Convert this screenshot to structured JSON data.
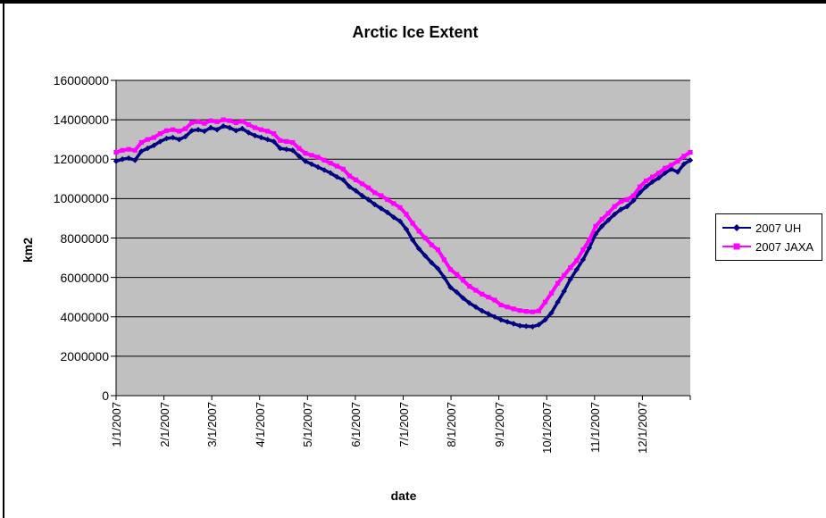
{
  "chart_data": {
    "type": "line",
    "title": "Arctic Ice Extent",
    "xlabel": "date",
    "ylabel": "km2",
    "ylim": [
      0,
      16000000
    ],
    "y_tick_interval": 2000000,
    "y_tick_labels": [
      "16000000",
      "14000000",
      "12000000",
      "10000000",
      "8000000",
      "6000000",
      "4000000",
      "2000000",
      "0"
    ],
    "x_tick_labels": [
      "1/1/2007",
      "2/1/2007",
      "3/1/2007",
      "4/1/2007",
      "5/1/2007",
      "6/1/2007",
      "7/1/2007",
      "8/1/2007",
      "9/1/2007",
      "10/1/2007",
      "11/1/2007",
      "12/1/2007"
    ],
    "x_unit": "day of year 2007 (daily series, sampled every 4 days)",
    "x_day_of_year": [
      1,
      5,
      9,
      13,
      17,
      21,
      25,
      29,
      33,
      37,
      41,
      45,
      49,
      53,
      57,
      61,
      65,
      69,
      73,
      77,
      81,
      85,
      89,
      93,
      97,
      101,
      105,
      109,
      113,
      117,
      121,
      125,
      129,
      133,
      137,
      141,
      145,
      149,
      153,
      157,
      161,
      165,
      169,
      173,
      177,
      181,
      185,
      189,
      193,
      197,
      201,
      205,
      209,
      213,
      217,
      221,
      225,
      229,
      233,
      237,
      241,
      245,
      249,
      253,
      257,
      261,
      265,
      269,
      273,
      277,
      281,
      285,
      289,
      293,
      297,
      301,
      305,
      309,
      313,
      317,
      321,
      325,
      329,
      333,
      337,
      341,
      345,
      349,
      353,
      357,
      361,
      365
    ],
    "series": [
      {
        "name": "2007 UH",
        "color": "#000080",
        "marker": "diamond",
        "values": [
          11900000,
          12000000,
          12050000,
          11950000,
          12400000,
          12550000,
          12700000,
          12900000,
          13050000,
          13100000,
          13000000,
          13150000,
          13450000,
          13500000,
          13420000,
          13600000,
          13500000,
          13680000,
          13600000,
          13450000,
          13550000,
          13350000,
          13200000,
          13100000,
          13000000,
          12900000,
          12550000,
          12500000,
          12450000,
          12150000,
          11900000,
          11750000,
          11600000,
          11450000,
          11300000,
          11100000,
          10950000,
          10600000,
          10400000,
          10150000,
          9950000,
          9700000,
          9500000,
          9300000,
          9050000,
          8850000,
          8450000,
          7900000,
          7450000,
          7100000,
          6750000,
          6450000,
          6000000,
          5500000,
          5250000,
          4950000,
          4700000,
          4500000,
          4300000,
          4150000,
          4000000,
          3850000,
          3750000,
          3650000,
          3550000,
          3520000,
          3500000,
          3600000,
          3850000,
          4200000,
          4750000,
          5300000,
          5900000,
          6400000,
          6900000,
          7500000,
          8200000,
          8600000,
          8900000,
          9200000,
          9450000,
          9600000,
          9900000,
          10300000,
          10600000,
          10850000,
          11050000,
          11300000,
          11500000,
          11350000,
          11750000,
          11950000
        ]
      },
      {
        "name": "2007 JAXA",
        "color": "#FF00FF",
        "marker": "square",
        "values": [
          12350000,
          12450000,
          12500000,
          12450000,
          12850000,
          13000000,
          13100000,
          13300000,
          13450000,
          13500000,
          13420000,
          13550000,
          13850000,
          13900000,
          13820000,
          13950000,
          13900000,
          14000000,
          13950000,
          13850000,
          13920000,
          13750000,
          13600000,
          13500000,
          13420000,
          13300000,
          12950000,
          12900000,
          12850000,
          12550000,
          12300000,
          12200000,
          12100000,
          11950000,
          11800000,
          11650000,
          11500000,
          11150000,
          10950000,
          10750000,
          10550000,
          10300000,
          10150000,
          9950000,
          9750000,
          9550000,
          9200000,
          8750000,
          8350000,
          8000000,
          7650000,
          7400000,
          6900000,
          6400000,
          6150000,
          5850000,
          5550000,
          5350000,
          5150000,
          5000000,
          4850000,
          4600000,
          4500000,
          4400000,
          4320000,
          4280000,
          4250000,
          4300000,
          4750000,
          5200000,
          5700000,
          6100000,
          6500000,
          6850000,
          7400000,
          7900000,
          8600000,
          8950000,
          9250000,
          9600000,
          9850000,
          9950000,
          10150000,
          10600000,
          10900000,
          11100000,
          11300000,
          11550000,
          11700000,
          11900000,
          12150000,
          12350000
        ]
      }
    ],
    "plot_bg": "#C0C0C0",
    "grid": true,
    "grid_color": "#000000",
    "axis_color": "#000000",
    "legend_position": "right",
    "legend_border": "#000000",
    "legend_bg": "#FFFFFF"
  }
}
